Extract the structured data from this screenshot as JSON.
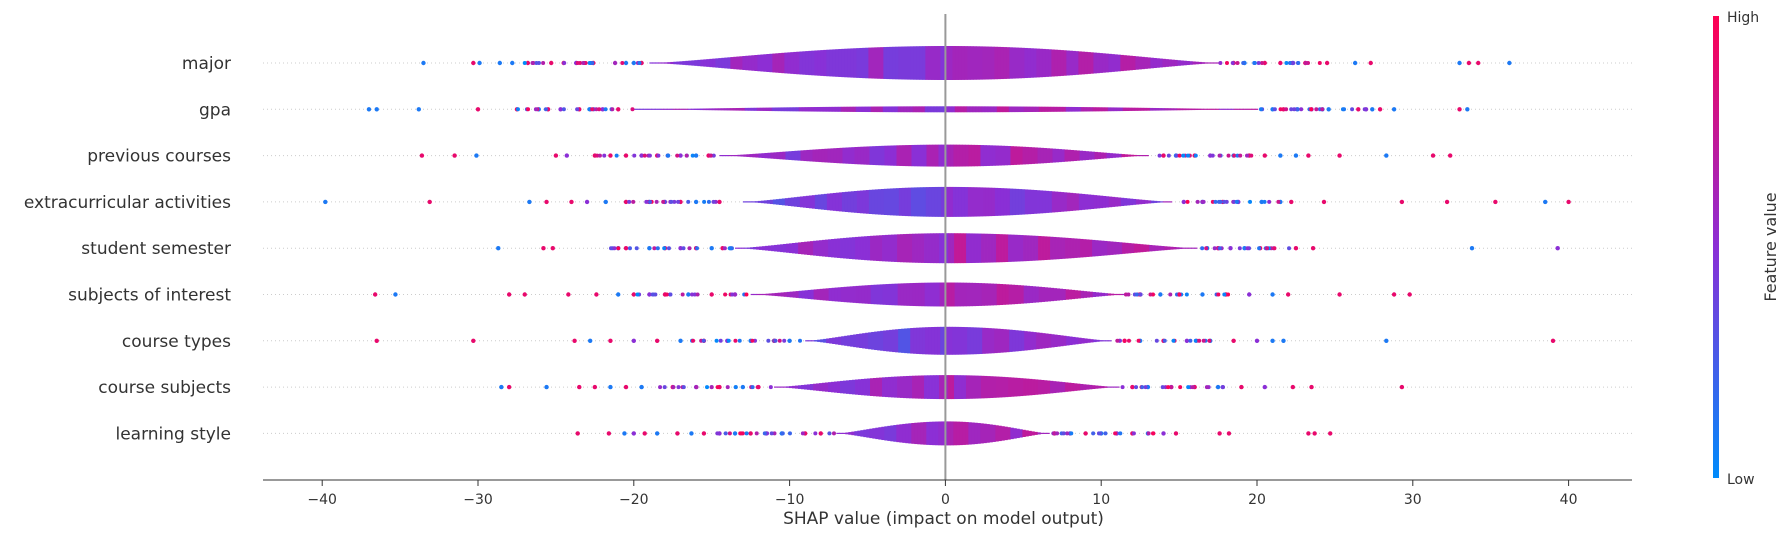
{
  "chart_data": {
    "type": "violin",
    "xlabel": "SHAP value (impact on model output)",
    "xlim": [
      -44,
      44
    ],
    "xticks": [
      -40,
      -30,
      -20,
      -10,
      0,
      10,
      20,
      30,
      40
    ],
    "xtick_labels": [
      "−40",
      "−30",
      "−20",
      "−10",
      "0",
      "10",
      "20",
      "30",
      "40"
    ],
    "colorbar": {
      "title": "Feature value",
      "high_label": "High",
      "low_label": "Low",
      "high_color": "#ff0052",
      "low_color": "#008bfb"
    },
    "features": [
      {
        "name": "major",
        "width": 17,
        "violin": [
          -19,
          17.5
        ],
        "outliers": [
          [
            -33.5,
            0.1
          ],
          [
            -30.3,
            0.9
          ],
          [
            -29.9,
            0.1
          ],
          [
            -28.6,
            0.1
          ],
          [
            -27.8,
            0.1
          ],
          [
            -26.8,
            0.9
          ],
          [
            -25.3,
            0.9
          ],
          [
            -24.5,
            0.9
          ],
          [
            -23.7,
            0.5
          ],
          [
            -22.6,
            0.9
          ],
          [
            -21.2,
            0.6
          ],
          [
            -20.5,
            0.1
          ],
          [
            -20,
            0.1
          ],
          [
            -19.5,
            0.9
          ],
          [
            18.5,
            0.9
          ],
          [
            19.2,
            0.1
          ],
          [
            20.5,
            0.9
          ],
          [
            21.5,
            0.9
          ],
          [
            22.3,
            0.1
          ],
          [
            23.1,
            0.9
          ],
          [
            24.5,
            0.9
          ],
          [
            26.3,
            0.1
          ],
          [
            27.3,
            0.9
          ],
          [
            33,
            0.1
          ],
          [
            33.6,
            0.9
          ],
          [
            34.2,
            0.9
          ],
          [
            36.2,
            0.1
          ]
        ]
      },
      {
        "name": "gpa",
        "width": 3,
        "violin": [
          -20,
          20
        ],
        "outliers": [
          [
            -37,
            0.1
          ],
          [
            -36.5,
            0.1
          ],
          [
            -33.8,
            0.1
          ],
          [
            -30,
            0.9
          ],
          [
            -27.5,
            0.9
          ],
          [
            -26.1,
            0.1
          ],
          [
            -25.5,
            0.9
          ],
          [
            -24.7,
            0.5
          ],
          [
            -23.5,
            0.9
          ],
          [
            -22.8,
            0.1
          ],
          [
            -22,
            0.5
          ],
          [
            -21,
            0.9
          ],
          [
            21,
            0.1
          ],
          [
            21.7,
            0.9
          ],
          [
            22.6,
            0.1
          ],
          [
            23.5,
            0.5
          ],
          [
            24.2,
            0.1
          ],
          [
            24.6,
            0.1
          ],
          [
            26.5,
            0.9
          ],
          [
            27,
            0.5
          ],
          [
            27.4,
            0.1
          ],
          [
            27.9,
            0.9
          ],
          [
            28.8,
            0.1
          ],
          [
            33,
            0.9
          ],
          [
            33.5,
            0.1
          ]
        ]
      },
      {
        "name": "previous courses",
        "width": 11,
        "violin": [
          -14.5,
          13
        ],
        "outliers": [
          [
            -33.6,
            0.9
          ],
          [
            -31.5,
            0.9
          ],
          [
            -30.1,
            0.1
          ],
          [
            -25,
            0.9
          ],
          [
            -24.3,
            0.5
          ],
          [
            -22.5,
            0.9
          ],
          [
            -21.5,
            0.9
          ],
          [
            -20.5,
            0.9
          ],
          [
            -19.5,
            0.5
          ],
          [
            -18.5,
            0.9
          ],
          [
            -17.8,
            0.1
          ],
          [
            -17,
            0.5
          ],
          [
            -16,
            0.1
          ],
          [
            -15.2,
            0.9
          ],
          [
            14,
            0.9
          ],
          [
            14.8,
            0.1
          ],
          [
            16,
            0.9
          ],
          [
            17,
            0.5
          ],
          [
            18.5,
            0.1
          ],
          [
            19.5,
            0.9
          ],
          [
            20.5,
            0.9
          ],
          [
            21.5,
            0.1
          ],
          [
            22.5,
            0.1
          ],
          [
            23.3,
            0.9
          ],
          [
            25.3,
            0.9
          ],
          [
            28.3,
            0.1
          ],
          [
            31.3,
            0.9
          ],
          [
            32.4,
            0.9
          ]
        ]
      },
      {
        "name": "extracurricular activities",
        "width": 15,
        "violin": [
          -13,
          14.5
        ],
        "outliers": [
          [
            -39.8,
            0.1
          ],
          [
            -33.1,
            0.9
          ],
          [
            -26.7,
            0.1
          ],
          [
            -25.6,
            0.9
          ],
          [
            -24,
            0.9
          ],
          [
            -23,
            0.5
          ],
          [
            -21.8,
            0.1
          ],
          [
            -20.5,
            0.9
          ],
          [
            -19,
            0.1
          ],
          [
            -18,
            0.5
          ],
          [
            -17,
            0.9
          ],
          [
            -16,
            0.1
          ],
          [
            -14.5,
            0.9
          ],
          [
            15.3,
            0.5
          ],
          [
            16.5,
            0.1
          ],
          [
            17.8,
            0.9
          ],
          [
            18.8,
            0.5
          ],
          [
            20.3,
            0.1
          ],
          [
            21.5,
            0.1
          ],
          [
            22.2,
            0.9
          ],
          [
            24.3,
            0.9
          ],
          [
            29.3,
            0.9
          ],
          [
            32.2,
            0.9
          ],
          [
            35.3,
            0.9
          ],
          [
            38.5,
            0.1
          ],
          [
            40,
            0.9
          ]
        ]
      },
      {
        "name": "student semester",
        "width": 15,
        "violin": [
          -13.5,
          16
        ],
        "outliers": [
          [
            -28.7,
            0.1
          ],
          [
            -25.8,
            0.9
          ],
          [
            -25.2,
            0.9
          ],
          [
            -21,
            0.1
          ],
          [
            -20.5,
            0.9
          ],
          [
            -19,
            0.1
          ],
          [
            -18,
            0.9
          ],
          [
            -17,
            0.5
          ],
          [
            -16,
            0.9
          ],
          [
            -15,
            0.1
          ],
          [
            -14.3,
            0.9
          ],
          [
            16.8,
            0.1
          ],
          [
            17.5,
            0.9
          ],
          [
            18.3,
            0.5
          ],
          [
            19.2,
            0.1
          ],
          [
            20.2,
            0.9
          ],
          [
            22.5,
            0.9
          ],
          [
            23.6,
            0.9
          ],
          [
            33.8,
            0.1
          ],
          [
            39.3,
            0.5
          ]
        ]
      },
      {
        "name": "subjects of interest",
        "width": 12,
        "violin": [
          -12.5,
          11.5
        ],
        "outliers": [
          [
            -36.6,
            0.9
          ],
          [
            -35.3,
            0.1
          ],
          [
            -28,
            0.9
          ],
          [
            -27,
            0.9
          ],
          [
            -24.2,
            0.9
          ],
          [
            -22.4,
            0.9
          ],
          [
            -21,
            0.1
          ],
          [
            -20,
            0.9
          ],
          [
            -19,
            0.5
          ],
          [
            -18,
            0.9
          ],
          [
            -16.5,
            0.1
          ],
          [
            -15,
            0.9
          ],
          [
            -13.5,
            0.5
          ],
          [
            12.5,
            0.9
          ],
          [
            13.8,
            0.1
          ],
          [
            15,
            0.9
          ],
          [
            16.5,
            0.1
          ],
          [
            18,
            0.9
          ],
          [
            19.5,
            0.5
          ],
          [
            21,
            0.1
          ],
          [
            22,
            0.9
          ],
          [
            25.3,
            0.9
          ],
          [
            28.8,
            0.9
          ],
          [
            29.8,
            0.9
          ]
        ]
      },
      {
        "name": "course types",
        "width": 14,
        "violin": [
          -9,
          10.5
        ],
        "outliers": [
          [
            -36.5,
            0.9
          ],
          [
            -30.3,
            0.9
          ],
          [
            -23.8,
            0.9
          ],
          [
            -22.8,
            0.1
          ],
          [
            -21.5,
            0.9
          ],
          [
            -20,
            0.5
          ],
          [
            -18.5,
            0.9
          ],
          [
            -17,
            0.1
          ],
          [
            -15.5,
            0.9
          ],
          [
            -14,
            0.5
          ],
          [
            -12.5,
            0.1
          ],
          [
            -11,
            0.9
          ],
          [
            -10,
            0.1
          ],
          [
            11.5,
            0.9
          ],
          [
            12.5,
            0.1
          ],
          [
            14,
            0.9
          ],
          [
            15.5,
            0.5
          ],
          [
            17,
            0.1
          ],
          [
            18.5,
            0.9
          ],
          [
            20,
            0.5
          ],
          [
            21,
            0.1
          ],
          [
            21.7,
            0.1
          ],
          [
            28.3,
            0.1
          ],
          [
            39,
            0.9
          ]
        ]
      },
      {
        "name": "course subjects",
        "width": 12,
        "violin": [
          -11,
          11
        ],
        "outliers": [
          [
            -28.5,
            0.1
          ],
          [
            -28,
            0.9
          ],
          [
            -25.6,
            0.1
          ],
          [
            -23.5,
            0.9
          ],
          [
            -22.5,
            0.9
          ],
          [
            -21.5,
            0.1
          ],
          [
            -20.5,
            0.9
          ],
          [
            -19.5,
            0.1
          ],
          [
            -17.5,
            0.9
          ],
          [
            -16,
            0.5
          ],
          [
            -14.5,
            0.9
          ],
          [
            -13,
            0.1
          ],
          [
            -12,
            0.9
          ],
          [
            12,
            0.9
          ],
          [
            13,
            0.1
          ],
          [
            14.5,
            0.5
          ],
          [
            16,
            0.9
          ],
          [
            17.5,
            0.1
          ],
          [
            19,
            0.9
          ],
          [
            20.5,
            0.5
          ],
          [
            22.3,
            0.9
          ],
          [
            23.5,
            0.9
          ],
          [
            29.3,
            0.9
          ]
        ]
      },
      {
        "name": "learning style",
        "width": 12,
        "violin": [
          -7,
          6.5
        ],
        "outliers": [
          [
            -23.6,
            0.9
          ],
          [
            -21.6,
            0.9
          ],
          [
            -20.6,
            0.1
          ],
          [
            -20,
            0.5
          ],
          [
            -19.3,
            0.9
          ],
          [
            -18.5,
            0.1
          ],
          [
            -17.2,
            0.9
          ],
          [
            -16.3,
            0.1
          ],
          [
            -15.5,
            0.9
          ],
          [
            -14.5,
            0.5
          ],
          [
            -13.5,
            0.1
          ],
          [
            -12.5,
            0.9
          ],
          [
            -11.5,
            0.5
          ],
          [
            -10.5,
            0.1
          ],
          [
            -9,
            0.9
          ],
          [
            -8,
            0.9
          ],
          [
            7,
            0.9
          ],
          [
            8,
            0.5
          ],
          [
            9,
            0.9
          ],
          [
            10,
            0.1
          ],
          [
            11,
            0.5
          ],
          [
            12,
            0.9
          ],
          [
            13,
            0.1
          ],
          [
            14,
            0.5
          ],
          [
            14.8,
            0.9
          ],
          [
            17.6,
            0.9
          ],
          [
            18.2,
            0.9
          ],
          [
            23.3,
            0.9
          ],
          [
            23.7,
            0.9
          ],
          [
            24.7,
            0.9
          ]
        ]
      }
    ]
  }
}
